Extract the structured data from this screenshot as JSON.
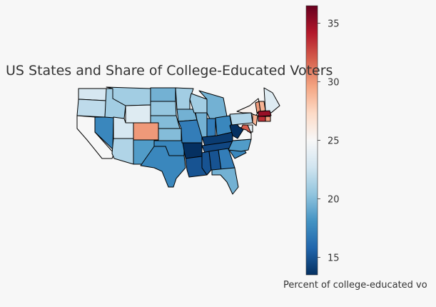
{
  "title": "US States and Share of College-Educated Voters",
  "colorbar": {
    "label": "Percent of college-educated vo",
    "ticks": [
      15,
      20,
      25,
      30,
      35
    ],
    "tick_labels": [
      "15",
      "20",
      "25",
      "30",
      "35"
    ],
    "min": 13.5,
    "max": 36.5,
    "colormap": "RdBu_r"
  },
  "chart_data": {
    "type": "choropleth",
    "region": "United States (lower 48)",
    "value_label": "Percent of college-educated voters",
    "states": [
      {
        "state": "WA",
        "value": 23
      },
      {
        "state": "OR",
        "value": 22
      },
      {
        "state": "CA",
        "value": 25
      },
      {
        "state": "NV",
        "value": 17.5
      },
      {
        "state": "ID",
        "value": 21
      },
      {
        "state": "MT",
        "value": 21
      },
      {
        "state": "WY",
        "value": 23.5
      },
      {
        "state": "UT",
        "value": 23
      },
      {
        "state": "CO",
        "value": 30
      },
      {
        "state": "AZ",
        "value": 21.5
      },
      {
        "state": "NM",
        "value": 18.5
      },
      {
        "state": "ND",
        "value": 19.5
      },
      {
        "state": "SD",
        "value": 20.5
      },
      {
        "state": "NE",
        "value": 20
      },
      {
        "state": "KS",
        "value": 20
      },
      {
        "state": "OK",
        "value": 17.5
      },
      {
        "state": "TX",
        "value": 17.5
      },
      {
        "state": "MN",
        "value": 21
      },
      {
        "state": "IA",
        "value": 19.5
      },
      {
        "state": "MO",
        "value": 17
      },
      {
        "state": "AR",
        "value": 13.5
      },
      {
        "state": "LA",
        "value": 15
      },
      {
        "state": "WI",
        "value": 21
      },
      {
        "state": "IL",
        "value": 19.5
      },
      {
        "state": "MI",
        "value": 19.5
      },
      {
        "state": "IN",
        "value": 17
      },
      {
        "state": "OH",
        "value": 17.5
      },
      {
        "state": "KY",
        "value": 14
      },
      {
        "state": "TN",
        "value": 14.5
      },
      {
        "state": "MS",
        "value": 15
      },
      {
        "state": "AL",
        "value": 15
      },
      {
        "state": "GA",
        "value": 17
      },
      {
        "state": "FL",
        "value": 19.5
      },
      {
        "state": "SC",
        "value": 17.5
      },
      {
        "state": "NC",
        "value": 18.5
      },
      {
        "state": "VA",
        "value": 25
      },
      {
        "state": "WV",
        "value": 13.5
      },
      {
        "state": "PA",
        "value": 21.5
      },
      {
        "state": "NY",
        "value": 25.5
      },
      {
        "state": "NJ",
        "value": 29
      },
      {
        "state": "DE",
        "value": 24
      },
      {
        "state": "MD",
        "value": 32
      },
      {
        "state": "VT",
        "value": 30
      },
      {
        "state": "NH",
        "value": 29
      },
      {
        "state": "ME",
        "value": 23.5
      },
      {
        "state": "MA",
        "value": 35
      },
      {
        "state": "CT",
        "value": 33.5
      },
      {
        "state": "RI",
        "value": 30
      }
    ]
  }
}
